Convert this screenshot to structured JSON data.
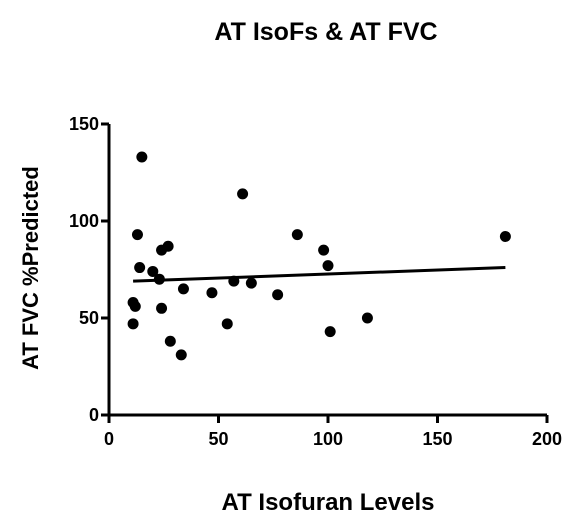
{
  "chart_data": {
    "type": "scatter",
    "title": "AT IsoFs & AT FVC",
    "xlabel": "AT Isofuran Levels",
    "ylabel": "AT FVC %Predicted",
    "xlim": [
      0,
      200
    ],
    "ylim": [
      0,
      150
    ],
    "xticks": [
      "0",
      "50",
      "100",
      "150",
      "200"
    ],
    "yticks": [
      "0",
      "50",
      "100",
      "150"
    ],
    "grid": false,
    "points": [
      {
        "x": 15,
        "y": 133
      },
      {
        "x": 61,
        "y": 114
      },
      {
        "x": 13,
        "y": 93
      },
      {
        "x": 86,
        "y": 93
      },
      {
        "x": 181,
        "y": 92
      },
      {
        "x": 27,
        "y": 87
      },
      {
        "x": 24,
        "y": 85
      },
      {
        "x": 98,
        "y": 85
      },
      {
        "x": 14,
        "y": 76
      },
      {
        "x": 100,
        "y": 77
      },
      {
        "x": 20,
        "y": 74
      },
      {
        "x": 23,
        "y": 70
      },
      {
        "x": 57,
        "y": 69
      },
      {
        "x": 65,
        "y": 68
      },
      {
        "x": 34,
        "y": 65
      },
      {
        "x": 47,
        "y": 63
      },
      {
        "x": 77,
        "y": 62
      },
      {
        "x": 11,
        "y": 58
      },
      {
        "x": 12,
        "y": 56
      },
      {
        "x": 24,
        "y": 55
      },
      {
        "x": 118,
        "y": 50
      },
      {
        "x": 11,
        "y": 47
      },
      {
        "x": 54,
        "y": 47
      },
      {
        "x": 101,
        "y": 43
      },
      {
        "x": 28,
        "y": 38
      },
      {
        "x": 33,
        "y": 31
      }
    ],
    "trendline": {
      "x": [
        11,
        181
      ],
      "y": [
        69,
        76
      ]
    },
    "color": "#000000"
  }
}
